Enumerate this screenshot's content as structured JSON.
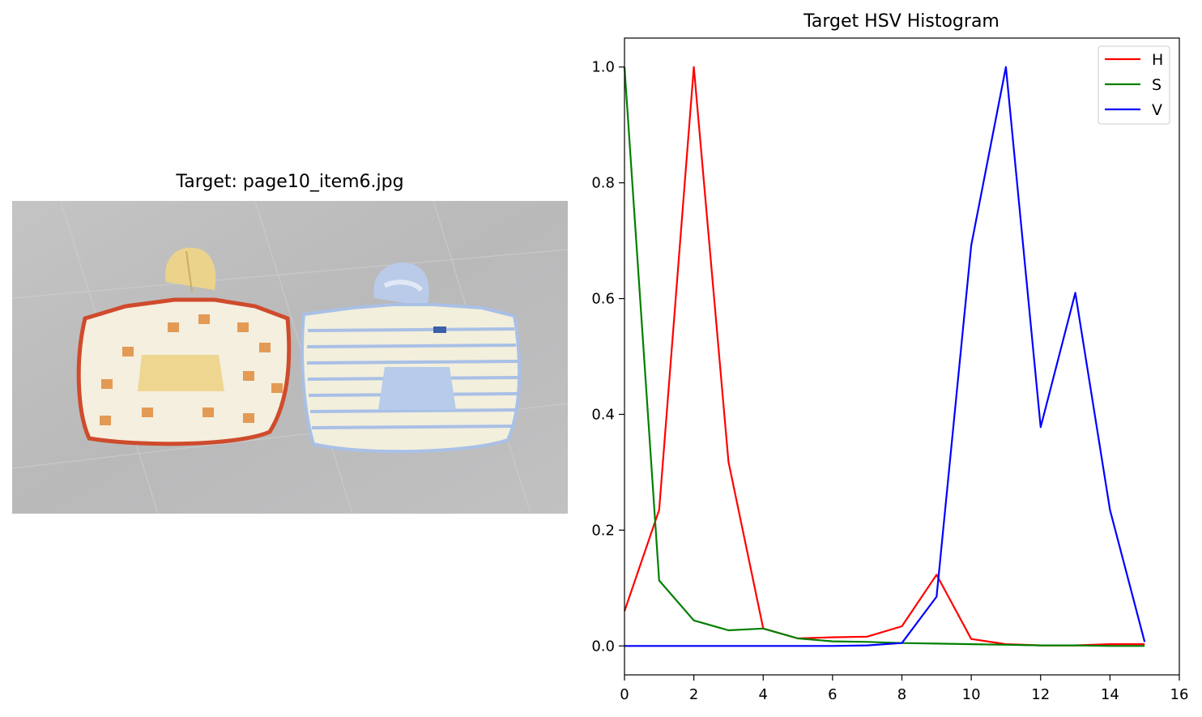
{
  "image_panel": {
    "title": "Target: page10_item6.jpg",
    "description": "Two children's hooded ponchos on a grey tiled floor"
  },
  "chart_data": {
    "type": "line",
    "title": "Target HSV Histogram",
    "xlabel": "",
    "ylabel": "",
    "xlim": [
      0,
      16
    ],
    "ylim": [
      -0.05,
      1.05
    ],
    "x_ticks": [
      0,
      2,
      4,
      6,
      8,
      10,
      12,
      14,
      16
    ],
    "y_ticks": [
      0.0,
      0.2,
      0.4,
      0.6,
      0.8,
      1.0
    ],
    "x_tick_labels": [
      "0",
      "2",
      "4",
      "6",
      "8",
      "10",
      "12",
      "14",
      "16"
    ],
    "y_tick_labels": [
      "0.0",
      "0.2",
      "0.4",
      "0.6",
      "0.8",
      "1.0"
    ],
    "grid": false,
    "legend_position": "top-right",
    "x": [
      0,
      1,
      2,
      3,
      4,
      5,
      6,
      7,
      8,
      9,
      10,
      11,
      12,
      13,
      14,
      15
    ],
    "series": [
      {
        "name": "H",
        "color": "#ff0000",
        "values": [
          0.06,
          0.235,
          1.0,
          0.318,
          0.03,
          0.013,
          0.015,
          0.016,
          0.034,
          0.123,
          0.012,
          0.003,
          0.001,
          0.001,
          0.003,
          0.003
        ]
      },
      {
        "name": "S",
        "color": "#008000",
        "values": [
          1.0,
          0.113,
          0.044,
          0.027,
          0.03,
          0.013,
          0.008,
          0.007,
          0.005,
          0.004,
          0.003,
          0.002,
          0.001,
          0.001,
          0.0,
          0.0
        ]
      },
      {
        "name": "V",
        "color": "#0000ff",
        "values": [
          0.0,
          0.0,
          0.0,
          0.0,
          0.0,
          0.0,
          0.0,
          0.001,
          0.005,
          0.085,
          0.692,
          1.0,
          0.378,
          0.61,
          0.235,
          0.007
        ]
      }
    ]
  }
}
